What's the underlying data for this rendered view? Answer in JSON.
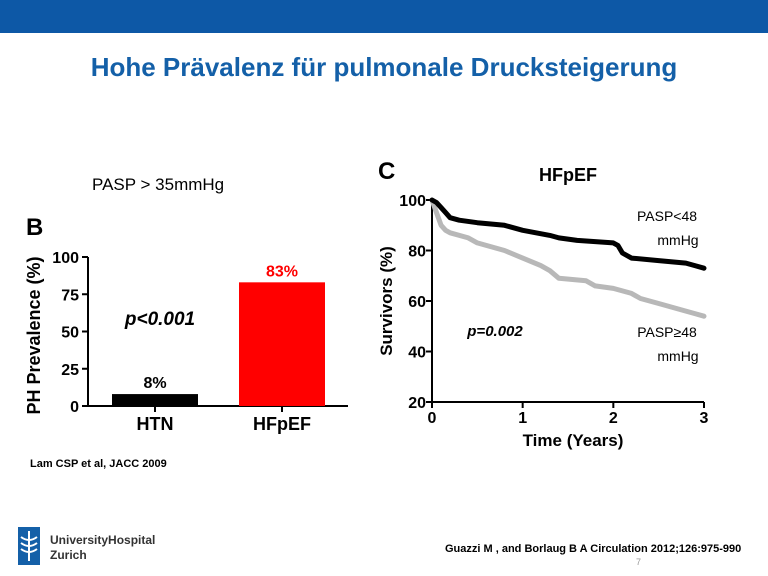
{
  "slide": {
    "title": "Hohe Prävalenz für pulmonale Drucksteigerung",
    "condition_label": "PASP > 35mmHg",
    "citation_left": "Lam CSP et al, JACC 2009",
    "citation_right": "Guazzi M , and Borlaug B A Circulation 2012;126:975-990",
    "page_number": "7",
    "logo_line1": "UniversityHospital",
    "logo_line2": "Zurich"
  },
  "colors": {
    "top_bar": "#0d58a6",
    "title": "#1460a8",
    "htn_bar": "#000000",
    "hfpef_bar": "#ff0000",
    "hfpef_label": "#ff0000",
    "curve_low": "#000000",
    "curve_high": "#b8b8b8"
  },
  "chart_data": [
    {
      "type": "bar",
      "panel_letter": "B",
      "title": "",
      "ylabel": "PH Prevalence (%)",
      "xlabel": "",
      "categories": [
        "HTN",
        "HFpEF"
      ],
      "values": [
        8,
        83
      ],
      "value_labels": [
        "8%",
        "83%"
      ],
      "ylim": [
        0,
        100
      ],
      "yticks": [
        "0",
        "25",
        "50",
        "75",
        "100"
      ],
      "annotation": "p<0.001",
      "grid": false
    },
    {
      "type": "line",
      "panel_letter": "C",
      "title": "HFpEF",
      "xlabel": "Time (Years)",
      "ylabel": "Survivors (%)",
      "xlim": [
        0,
        3
      ],
      "ylim": [
        20,
        100
      ],
      "xticks": [
        "0",
        "1",
        "2",
        "3"
      ],
      "yticks": [
        "20",
        "40",
        "60",
        "80",
        "100"
      ],
      "annotation": "p=0.002",
      "grid": false,
      "series": [
        {
          "name": "PASP<48 mmHg",
          "label_line1": "PASP<48",
          "label_line2": "mmHg",
          "x": [
            0,
            0.05,
            0.1,
            0.15,
            0.2,
            0.3,
            0.5,
            0.8,
            1.0,
            1.3,
            1.4,
            1.6,
            2.0,
            2.05,
            2.1,
            2.2,
            2.5,
            2.8,
            2.9,
            3.0
          ],
          "y": [
            100,
            99,
            97,
            95,
            93,
            92,
            91,
            90,
            88,
            86,
            85,
            84,
            83,
            82,
            79,
            77,
            76,
            75,
            74,
            73
          ]
        },
        {
          "name": "PASP≥48 mmHg",
          "label_line1": "PASP≥48",
          "label_line2": "mmHg",
          "x": [
            0,
            0.05,
            0.1,
            0.15,
            0.2,
            0.4,
            0.5,
            0.8,
            1.0,
            1.2,
            1.3,
            1.4,
            1.7,
            1.8,
            2.0,
            2.2,
            2.3,
            2.5,
            2.8,
            2.9,
            3.0
          ],
          "y": [
            100,
            95,
            90,
            88,
            87,
            85,
            83,
            80,
            77,
            74,
            72,
            69,
            68,
            66,
            65,
            63,
            61,
            59,
            56,
            55,
            54
          ]
        }
      ]
    }
  ]
}
